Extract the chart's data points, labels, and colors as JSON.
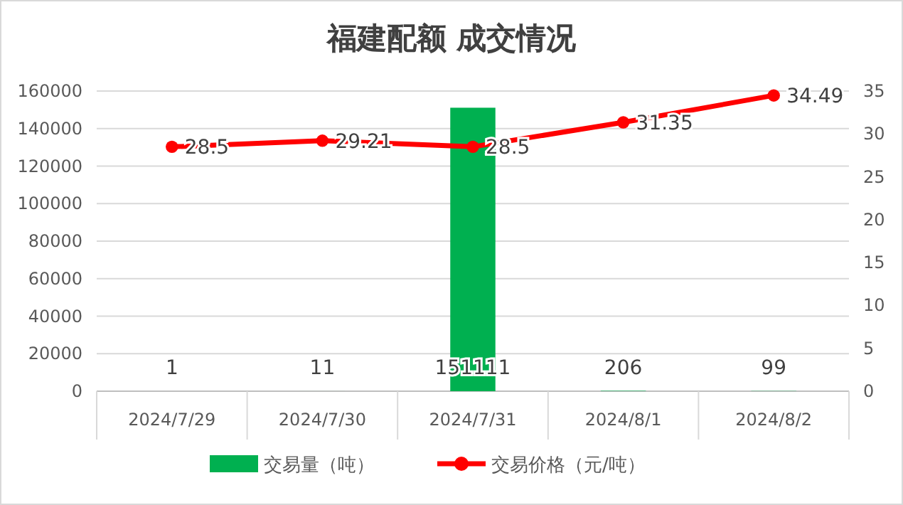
{
  "chart_data": {
    "type": "bar",
    "title": "福建配额 成交情况",
    "categories": [
      "2024/7/29",
      "2024/7/30",
      "2024/7/31",
      "2024/8/1",
      "2024/8/2"
    ],
    "series": [
      {
        "name": "交易量（吨）",
        "color": "#00b050",
        "values": [
          1,
          11,
          151111,
          206,
          99
        ]
      },
      {
        "name": "交易价格（元/吨）",
        "type": "line",
        "axis": "y2",
        "color": "#ff0000",
        "values": [
          28.5,
          29.21,
          28.5,
          31.35,
          34.49
        ],
        "marker": "circle"
      }
    ],
    "ylim": [
      0,
      160000
    ],
    "yticks": [
      0,
      20000,
      40000,
      60000,
      80000,
      100000,
      120000,
      140000,
      160000
    ],
    "y2lim": [
      0,
      35
    ],
    "y2ticks": [
      0,
      5,
      10,
      15,
      20,
      25,
      30,
      35
    ],
    "grid": "y",
    "legend": "bottom",
    "data_labels": true
  }
}
